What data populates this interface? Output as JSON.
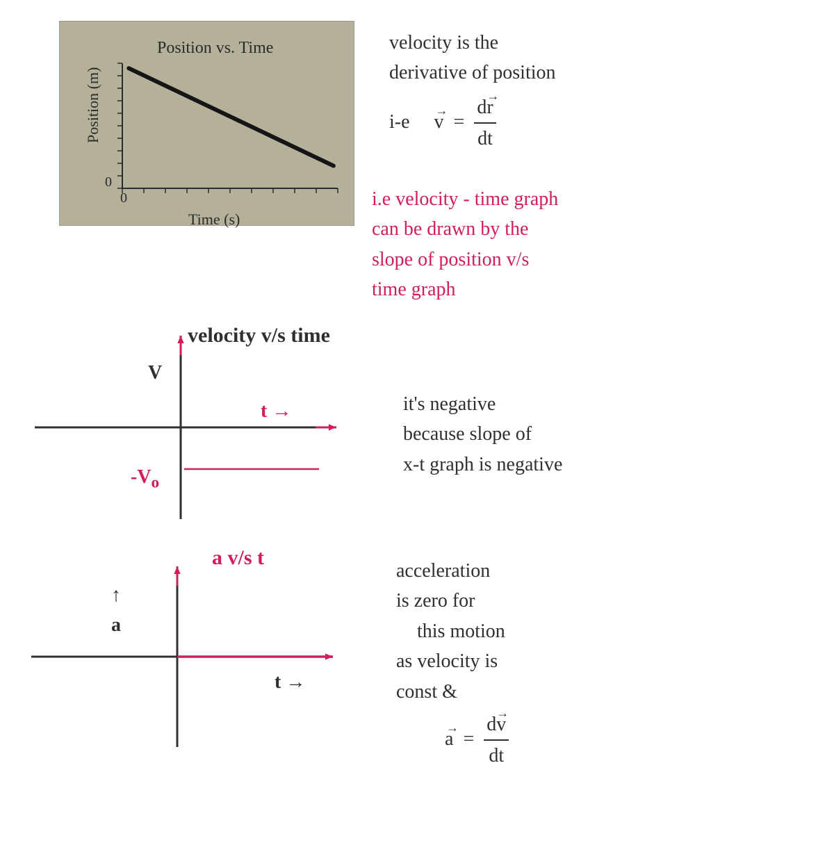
{
  "textbook_graph": {
    "title": "Position vs. Time",
    "ylabel": "Position (m)",
    "xlabel": "Time (s)",
    "origin_label": "0",
    "background_color": "#b5b09a",
    "axis_color": "#2a2a2a",
    "tick_color": "#2a2a2a",
    "line_color": "#151515",
    "line_width": 6,
    "x_range": [
      0,
      10
    ],
    "y_range": [
      0,
      10
    ],
    "tick_count": 11,
    "line_start": {
      "x": 0.3,
      "y": 9.6
    },
    "line_end": {
      "x": 9.8,
      "y": 1.8
    },
    "title_fontsize": 24,
    "label_fontsize": 22
  },
  "note_velocity_def": {
    "line1": "velocity is the",
    "line2": "derivative of position",
    "line3_prefix": "i-e",
    "eq_lhs": "v",
    "eq_num": "dr",
    "eq_den": "dt",
    "color": "#2f2f2f",
    "fontsize": 28
  },
  "note_vt_slope": {
    "line1": "i.e velocity - time graph",
    "line2": "can be drawn by the",
    "line3": "slope of position v/s",
    "line4": "time graph",
    "color": "#d11d5b",
    "fontsize": 28
  },
  "vt_graph": {
    "title": "velocity v/s time",
    "ylabel": "V",
    "xlabel": "t",
    "neg_label": "-V",
    "neg_label_sub": "o",
    "axis_color": "#2f2f2f",
    "accent_color": "#d11d5b",
    "line_y": -1,
    "x_extent": [
      -3,
      3.2
    ],
    "y_extent": [
      -2.2,
      2.2
    ],
    "title_fontsize": 30,
    "label_fontsize": 28
  },
  "note_vt_neg": {
    "line1": "it's negative",
    "line2": "because slope of",
    "line3": "x-t graph is negative",
    "color": "#2f2f2f",
    "fontsize": 28
  },
  "at_graph": {
    "title": "a v/s t",
    "ylabel": "a",
    "xlabel": "t",
    "axis_color": "#2f2f2f",
    "accent_color": "#d11d5b",
    "line_y": 0,
    "x_extent": [
      -3,
      3.2
    ],
    "y_extent": [
      -2,
      2
    ],
    "title_fontsize": 30,
    "label_fontsize": 28
  },
  "note_at_zero": {
    "line1": "acceleration",
    "line2": "is zero for",
    "line3": "this motion",
    "line4": "as velocity is",
    "line5": "const &",
    "eq_lhs": "a",
    "eq_num": "dv",
    "eq_den": "dt",
    "color": "#2f2f2f",
    "fontsize": 28
  }
}
